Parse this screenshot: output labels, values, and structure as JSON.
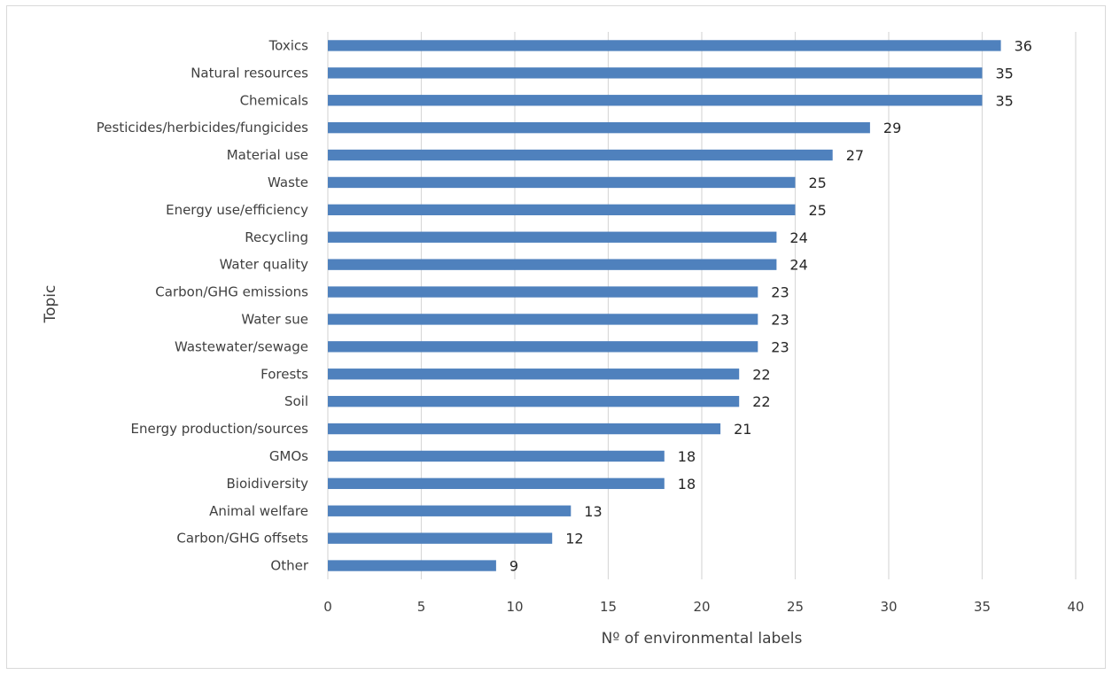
{
  "chart_data": {
    "type": "bar",
    "orientation": "horizontal",
    "title": "",
    "xlabel": "Nº of environmental labels",
    "ylabel": "Topic",
    "xlim": [
      0,
      40
    ],
    "xticks": [
      0,
      5,
      10,
      15,
      20,
      25,
      30,
      35,
      40
    ],
    "grid": "vertical",
    "bar_color": "#4f81bd",
    "data_labels": true,
    "categories": [
      "Toxics",
      "Natural resources",
      "Chemicals",
      "Pesticides/herbicides/fungicides",
      "Material use",
      "Waste",
      "Energy use/efficiency",
      "Recycling",
      "Water quality ",
      "Carbon/GHG emissions",
      "Water sue",
      "Wastewater/sewage",
      "Forests",
      "Soil",
      "Energy production/sources",
      "GMOs",
      "Bioidiversity",
      "Animal welfare",
      "Carbon/GHG offsets",
      "Other"
    ],
    "values": [
      36,
      35,
      35,
      29,
      27,
      25,
      25,
      24,
      24,
      23,
      23,
      23,
      22,
      22,
      21,
      18,
      18,
      13,
      12,
      9
    ]
  }
}
